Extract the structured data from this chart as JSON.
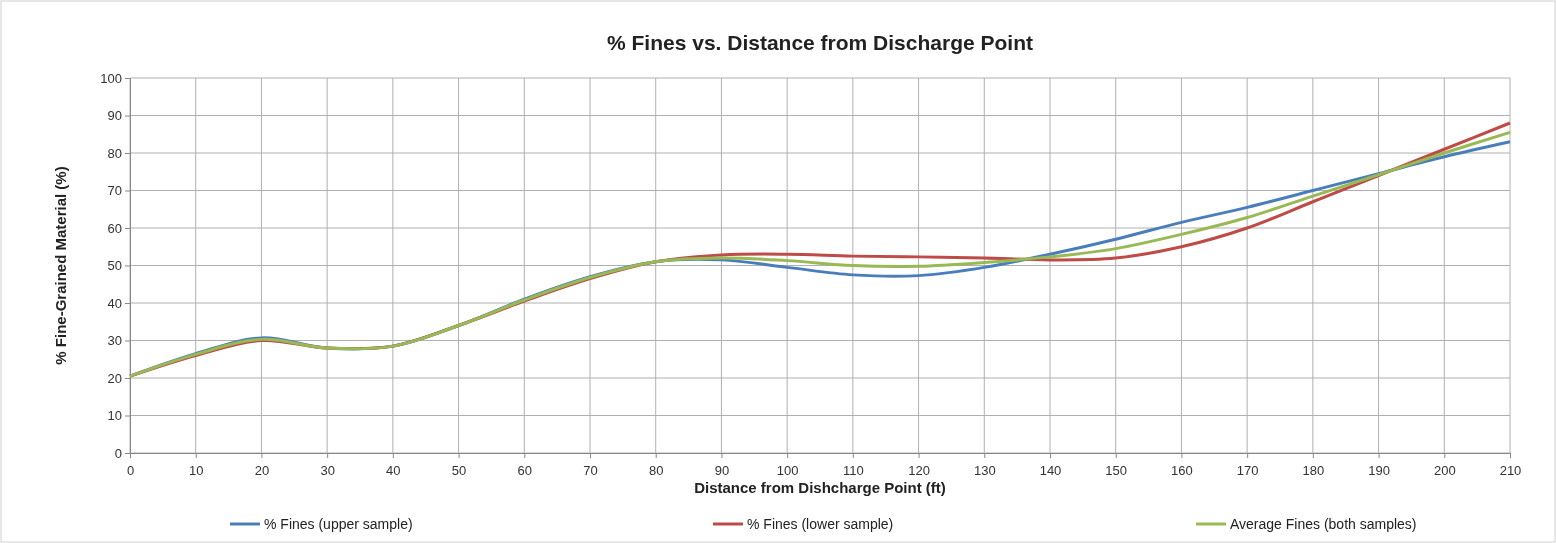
{
  "chart_data": {
    "type": "line",
    "title": "% Fines vs. Distance from Discharge Point",
    "xlabel": "Distance from Dishcharge Point (ft)",
    "ylabel": "% Fine-Grained Material (%)",
    "x": [
      0,
      10,
      20,
      30,
      40,
      50,
      60,
      70,
      80,
      90,
      100,
      110,
      120,
      130,
      140,
      150,
      160,
      170,
      180,
      190,
      200,
      210
    ],
    "xlim": [
      0,
      210
    ],
    "xticks": [
      0,
      10,
      20,
      30,
      40,
      50,
      60,
      70,
      80,
      90,
      100,
      110,
      120,
      130,
      140,
      150,
      160,
      170,
      180,
      190,
      200,
      210
    ],
    "ylim": [
      0,
      100
    ],
    "yticks": [
      0,
      10,
      20,
      30,
      40,
      50,
      60,
      70,
      80,
      90,
      100
    ],
    "grid": true,
    "legend": "bottom",
    "marker": "none",
    "line_style": "solid",
    "series": [
      {
        "name": "% Fines (upper sample)",
        "color": "#4a7ebb",
        "values": [
          20.5,
          26.5,
          30.7,
          28,
          28.5,
          34,
          41,
          47,
          51,
          51.5,
          49.5,
          47.5,
          47.3,
          49.5,
          53,
          57,
          61.5,
          65.5,
          70,
          74.5,
          79,
          83
        ]
      },
      {
        "name": "% Fines (lower sample)",
        "color": "#be4b48",
        "values": [
          20.5,
          26,
          30,
          28,
          28.5,
          34,
          40.5,
          46.5,
          51,
          52.8,
          53,
          52.5,
          52.3,
          52,
          51.5,
          52,
          55,
          60,
          67,
          74,
          81,
          88
        ]
      },
      {
        "name": "Average Fines (both samples)",
        "color": "#98b954",
        "values": [
          20.5,
          26.3,
          30.3,
          28,
          28.5,
          34,
          40.8,
          46.8,
          51,
          52,
          51.3,
          50,
          49.8,
          50.8,
          52.3,
          54.5,
          58.3,
          62.8,
          68.5,
          74.2,
          80,
          85.5
        ]
      }
    ]
  }
}
